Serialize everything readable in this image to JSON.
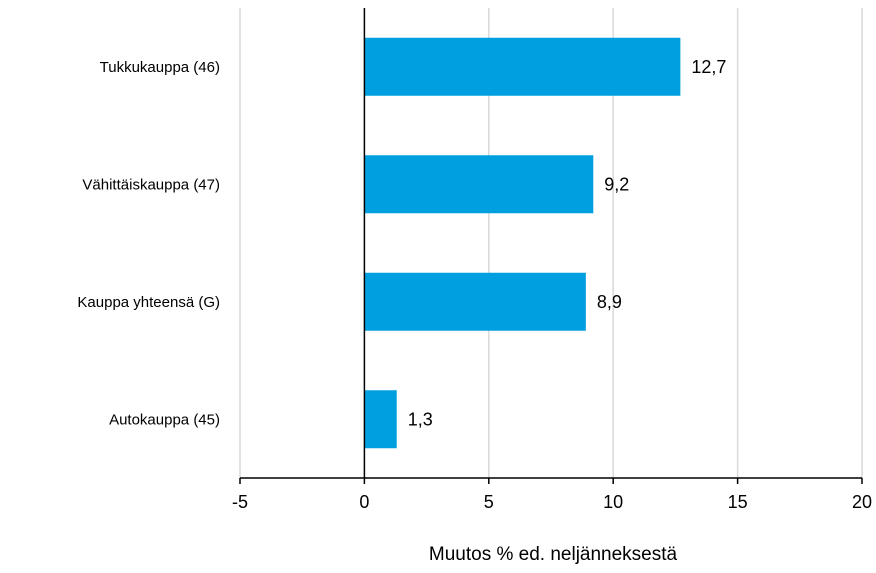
{
  "chart_data": {
    "type": "bar",
    "orientation": "horizontal",
    "title": "",
    "xlabel": "Muutos % ed. neljänneksestä",
    "ylabel": "",
    "categories": [
      "Tukkukauppa (46)",
      "Vähittäiskauppa (47)",
      "Kauppa yhteensä (G)",
      "Autokauppa (45)"
    ],
    "values": [
      12.7,
      9.2,
      8.9,
      1.3
    ],
    "value_labels": [
      "12,7",
      "9,2",
      "8,9",
      "1,3"
    ],
    "xlim": [
      -5,
      20
    ],
    "xticks": [
      -5,
      0,
      5,
      10,
      15,
      20
    ],
    "xtick_labels": [
      "-5",
      "0",
      "5",
      "10",
      "15",
      "20"
    ],
    "grid": "vertical",
    "legend": "none",
    "bar_color": "#009fdf",
    "grid_color": "#d9d9d9",
    "axis_color": "#000000"
  }
}
